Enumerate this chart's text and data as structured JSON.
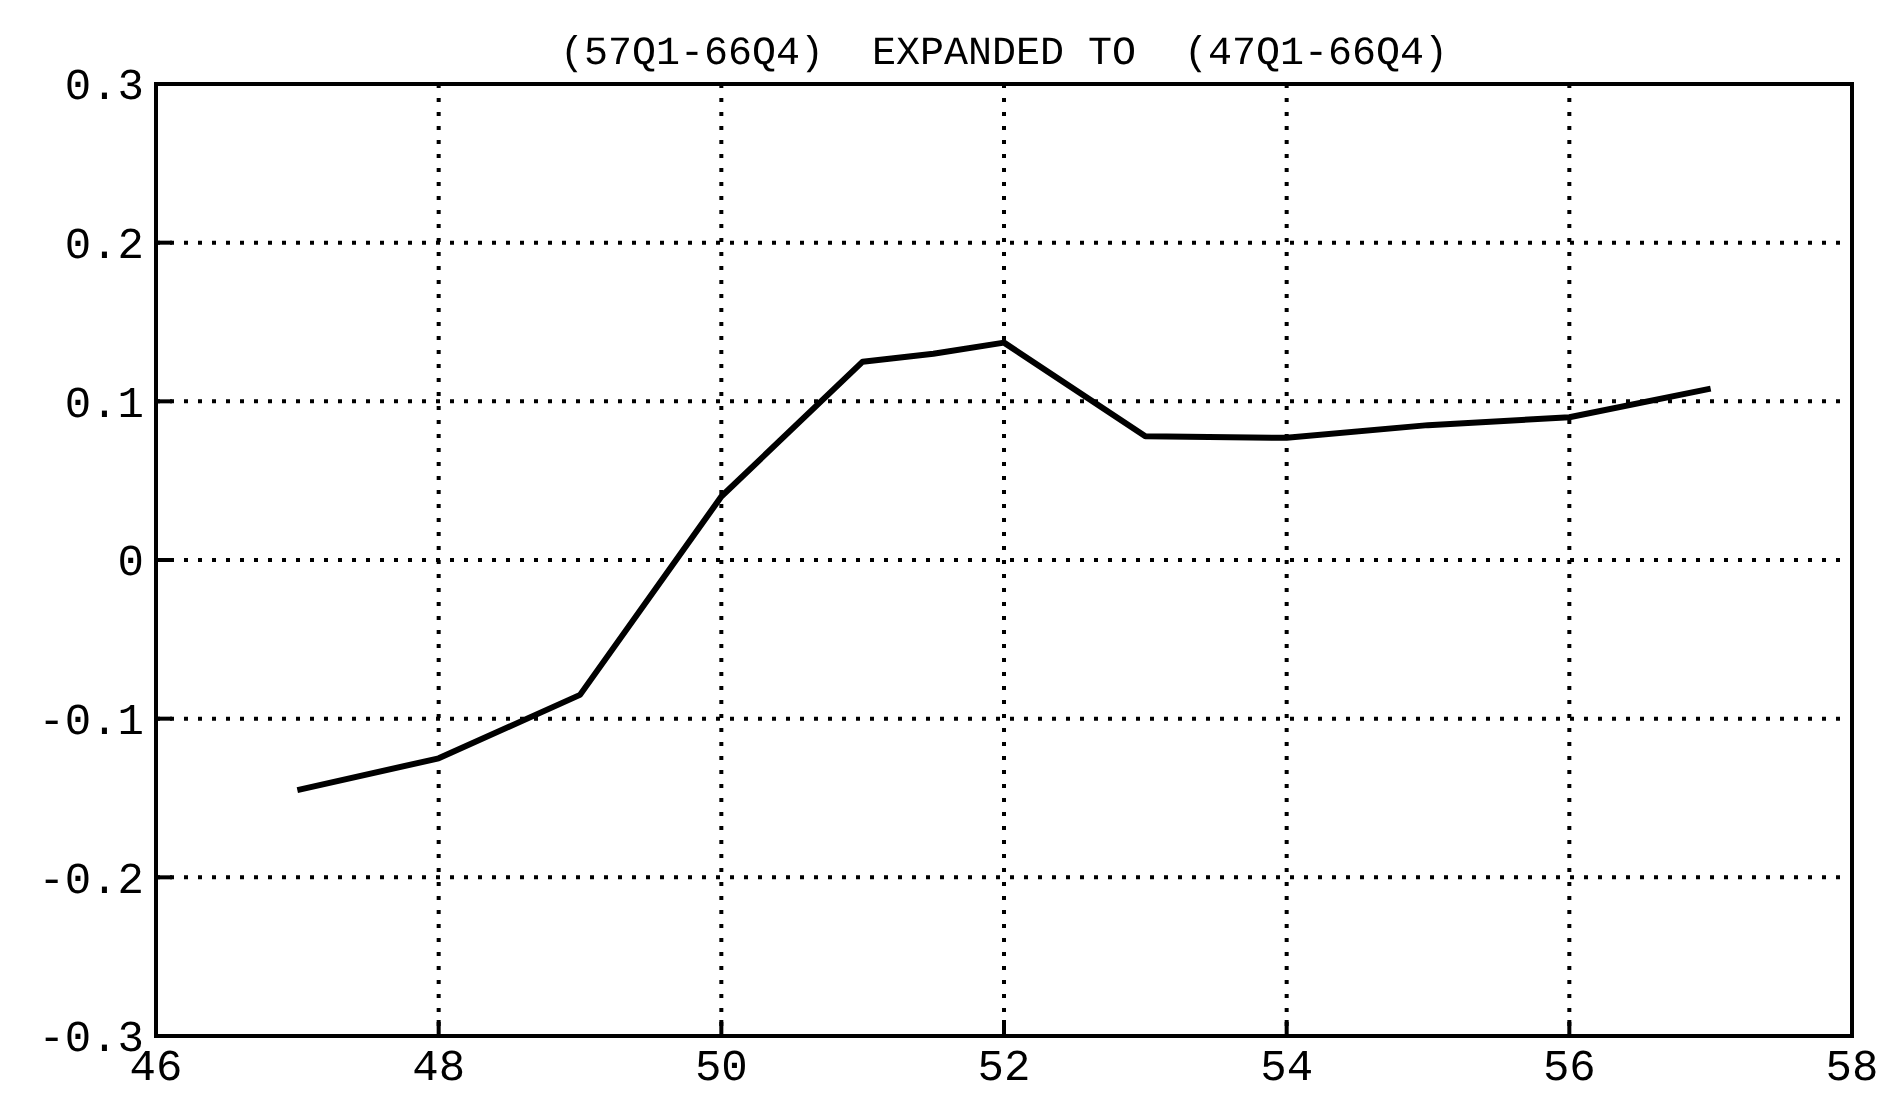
{
  "chart_data": {
    "type": "line",
    "title": "(57Q1-66Q4)  EXPANDED TO  (47Q1-66Q4)",
    "x": [
      47,
      48,
      49,
      50,
      51,
      51.5,
      52,
      53,
      54,
      55,
      56,
      57
    ],
    "series": [
      {
        "color": "#000000",
        "values": [
          -0.145,
          -0.125,
          -0.085,
          0.04,
          0.125,
          0.13,
          0.137,
          0.078,
          0.077,
          0.085,
          0.09,
          0.108
        ]
      }
    ],
    "xlim": [
      46,
      58
    ],
    "xticks": [
      46,
      48,
      50,
      52,
      54,
      56,
      58
    ],
    "ylim": [
      -0.3,
      0.3
    ],
    "yticks": [
      -0.3,
      -0.2,
      -0.1,
      0,
      0.1,
      0.2,
      0.3
    ],
    "grid": true,
    "marker": "none",
    "line_style": "solid"
  }
}
